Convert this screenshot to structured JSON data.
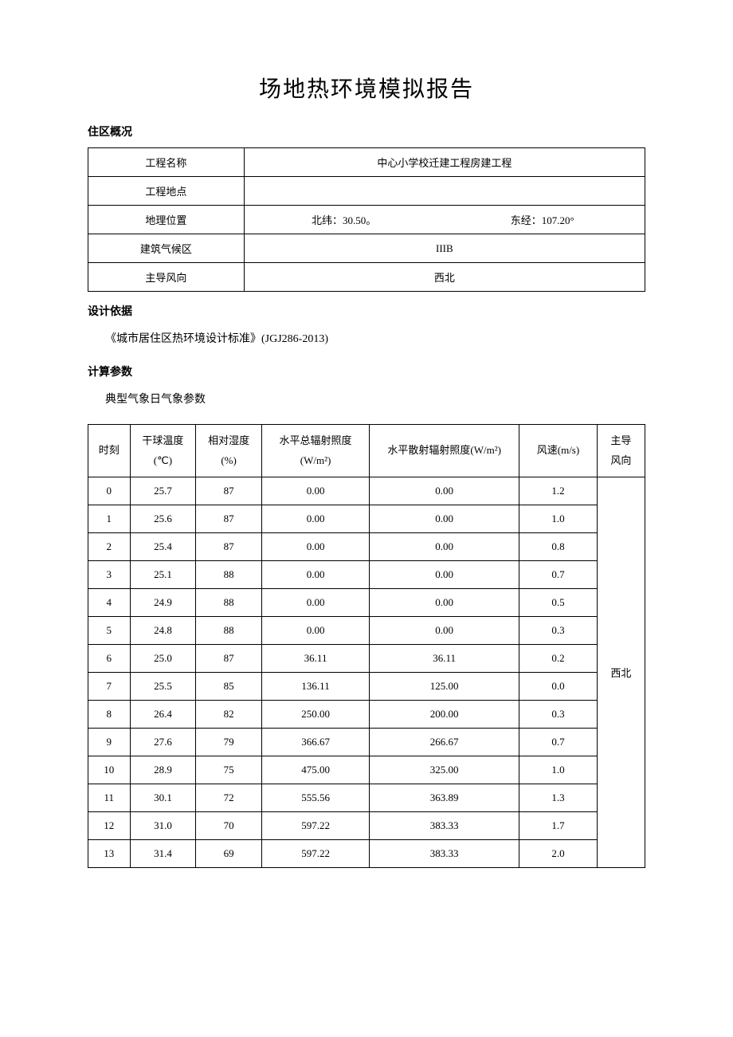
{
  "title": "场地热环境模拟报告",
  "sections": {
    "overview_header": "住区概况",
    "basis_header": "设计依据",
    "params_header": "计算参数"
  },
  "overview": {
    "rows": [
      {
        "label": "工程名称",
        "value": "中心小学校迁建工程房建工程"
      },
      {
        "label": "工程地点",
        "value": ""
      },
      {
        "label": "地理位置",
        "lat_label": "北纬：",
        "lat_value": "30.50。",
        "lon_label": "东经：",
        "lon_value": "107.20°"
      },
      {
        "label": "建筑气候区",
        "value": "IIIB"
      },
      {
        "label": "主导风向",
        "value": "西北"
      }
    ]
  },
  "basis_text": "《城市居住区热环境设计标准》(JGJ286-2013)",
  "meteo_caption": "典型气象日气象参数",
  "meteo": {
    "headers": {
      "time": "时刻",
      "dry_bulb": "干球温度\n(℃)",
      "rh": "相对湿度\n(%)",
      "total_rad": "水平总辐射照度\n(W/m²)",
      "diffuse_rad": "水平散射辐射照度(W/m²)",
      "wind_speed": "风速(m/s)",
      "wind_dir": "主导\n风向"
    },
    "wind_dir_value": "西北",
    "rows": [
      {
        "t": "0",
        "temp": "25.7",
        "rh": "87",
        "tot": "0.00",
        "diff": "0.00",
        "ws": "1.2"
      },
      {
        "t": "1",
        "temp": "25.6",
        "rh": "87",
        "tot": "0.00",
        "diff": "0.00",
        "ws": "1.0"
      },
      {
        "t": "2",
        "temp": "25.4",
        "rh": "87",
        "tot": "0.00",
        "diff": "0.00",
        "ws": "0.8"
      },
      {
        "t": "3",
        "temp": "25.1",
        "rh": "88",
        "tot": "0.00",
        "diff": "0.00",
        "ws": "0.7"
      },
      {
        "t": "4",
        "temp": "24.9",
        "rh": "88",
        "tot": "0.00",
        "diff": "0.00",
        "ws": "0.5"
      },
      {
        "t": "5",
        "temp": "24.8",
        "rh": "88",
        "tot": "0.00",
        "diff": "0.00",
        "ws": "0.3"
      },
      {
        "t": "6",
        "temp": "25.0",
        "rh": "87",
        "tot": "36.11",
        "diff": "36.11",
        "ws": "0.2"
      },
      {
        "t": "7",
        "temp": "25.5",
        "rh": "85",
        "tot": "136.11",
        "diff": "125.00",
        "ws": "0.0"
      },
      {
        "t": "8",
        "temp": "26.4",
        "rh": "82",
        "tot": "250.00",
        "diff": "200.00",
        "ws": "0.3"
      },
      {
        "t": "9",
        "temp": "27.6",
        "rh": "79",
        "tot": "366.67",
        "diff": "266.67",
        "ws": "0.7"
      },
      {
        "t": "10",
        "temp": "28.9",
        "rh": "75",
        "tot": "475.00",
        "diff": "325.00",
        "ws": "1.0"
      },
      {
        "t": "11",
        "temp": "30.1",
        "rh": "72",
        "tot": "555.56",
        "diff": "363.89",
        "ws": "1.3"
      },
      {
        "t": "12",
        "temp": "31.0",
        "rh": "70",
        "tot": "597.22",
        "diff": "383.33",
        "ws": "1.7"
      },
      {
        "t": "13",
        "temp": "31.4",
        "rh": "69",
        "tot": "597.22",
        "diff": "383.33",
        "ws": "2.0"
      }
    ]
  },
  "colors": {
    "text": "#000000",
    "border": "#000000",
    "background": "#ffffff"
  }
}
